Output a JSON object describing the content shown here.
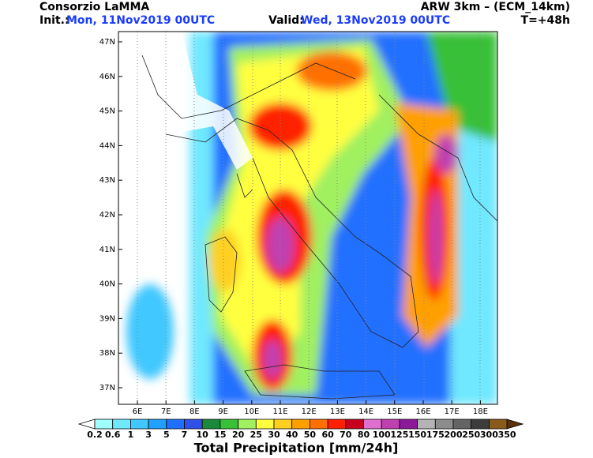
{
  "header": {
    "org": "Consorzio LaMMA",
    "init_label": "Init.:",
    "init_time": "Mon, 11Nov2019 00UTC",
    "valid_label": "Valid:",
    "valid_time": "Wed, 13Nov2019 00UTC",
    "model": "ARW 3km – (ECM_14km)",
    "lead": "T=+48h"
  },
  "map": {
    "lat_labels": [
      "47N",
      "46N",
      "45N",
      "44N",
      "43N",
      "42N",
      "41N",
      "40N",
      "39N",
      "38N",
      "37N"
    ],
    "lon_labels": [
      "6E",
      "7E",
      "8E",
      "9E",
      "10E",
      "11E",
      "12E",
      "13E",
      "14E",
      "15E",
      "16E",
      "17E",
      "18E"
    ]
  },
  "colorbar": {
    "labels": [
      "0.2",
      "0.6",
      "1",
      "3",
      "5",
      "7",
      "10",
      "15",
      "20",
      "25",
      "30",
      "40",
      "50",
      "60",
      "70",
      "80",
      "100",
      "125",
      "150",
      "175",
      "200",
      "250",
      "300",
      "350"
    ],
    "colors": [
      "#ffffff",
      "#a0ffff",
      "#70e8ff",
      "#40c8ff",
      "#20a0ff",
      "#2070ff",
      "#3050e8",
      "#1a8a3a",
      "#38c038",
      "#a0f060",
      "#ffff40",
      "#ffd020",
      "#ffa000",
      "#ff7000",
      "#ff2000",
      "#c80020",
      "#e070d0",
      "#c040b0",
      "#8a1a9a",
      "#b4b4b4",
      "#8c8c8c",
      "#646464",
      "#3c3c3c",
      "#8a5a1a",
      "#5a3008"
    ],
    "title": "Total Precipitation [mm/24h]"
  }
}
